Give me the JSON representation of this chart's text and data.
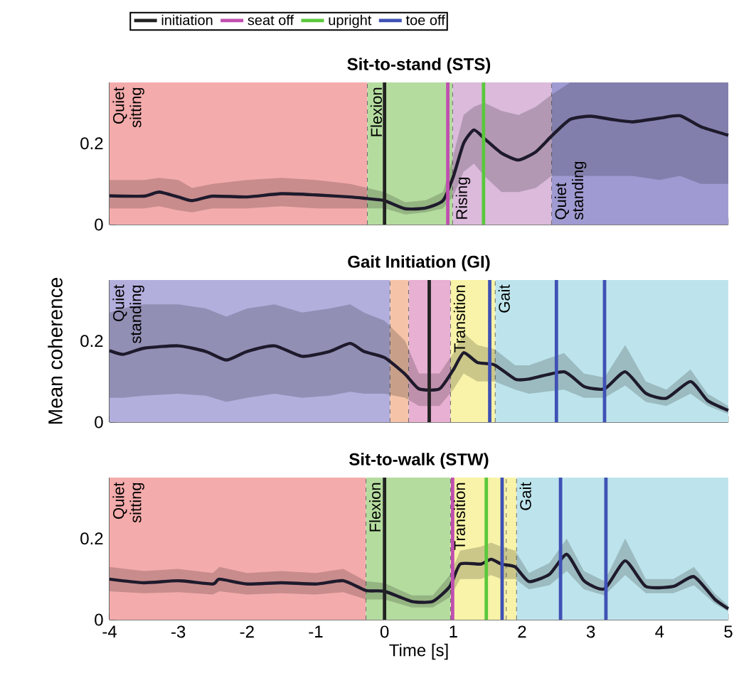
{
  "chart_data": [
    {
      "type": "line",
      "title": "Sit-to-stand (STS)",
      "xlim": [
        -4,
        5
      ],
      "ylim": [
        0,
        0.35
      ],
      "xticks": [
        -4,
        -3,
        -2,
        -1,
        0,
        1,
        2,
        3,
        4,
        5
      ],
      "yticks": [
        0,
        0.2
      ],
      "tick_labels": "y",
      "x": [
        -4,
        -3.5,
        -3.28,
        -3,
        -2.8,
        -2.5,
        -2,
        -1.5,
        -1,
        -0.5,
        -0.25,
        0,
        0.3,
        0.6,
        0.85,
        1.0,
        1.15,
        1.3,
        1.45,
        1.7,
        1.95,
        2.2,
        2.43,
        2.7,
        3,
        3.3,
        3.6,
        4,
        4.3,
        4.6,
        5
      ],
      "series": [
        {
          "color": "#1e1a2c",
          "values": [
            0.071,
            0.07,
            0.08,
            0.068,
            0.059,
            0.07,
            0.068,
            0.076,
            0.073,
            0.068,
            0.064,
            0.059,
            0.039,
            0.041,
            0.059,
            0.118,
            0.2,
            0.233,
            0.212,
            0.176,
            0.159,
            0.179,
            0.218,
            0.259,
            0.267,
            0.259,
            0.253,
            0.262,
            0.268,
            0.241,
            0.22
          ],
          "lower": [
            0.04,
            0.04,
            0.045,
            0.035,
            0.03,
            0.04,
            0.04,
            0.045,
            0.04,
            0.04,
            0.04,
            0.04,
            0.025,
            0.03,
            0.04,
            0.07,
            0.13,
            0.15,
            0.12,
            0.08,
            0.08,
            0.09,
            0.12,
            0.12,
            0.12,
            0.12,
            0.12,
            0.11,
            0.12,
            0.1,
            0.1
          ],
          "upper": [
            0.11,
            0.11,
            0.115,
            0.11,
            0.09,
            0.1,
            0.11,
            0.115,
            0.11,
            0.1,
            0.09,
            0.08,
            0.055,
            0.06,
            0.08,
            0.17,
            0.27,
            0.29,
            0.3,
            0.28,
            0.27,
            0.29,
            0.32,
            0.35,
            0.35,
            0.35,
            0.35,
            0.35,
            0.35,
            0.35,
            0.35
          ]
        }
      ],
      "bands": [
        {
          "axis": "x",
          "from": -4,
          "to": -0.25,
          "label": "Quiet sitting",
          "color": "#f4abab"
        },
        {
          "axis": "x",
          "from": -0.25,
          "to": 0.99,
          "label": "Flexion",
          "color": "#b5dc9f"
        },
        {
          "axis": "x",
          "from": 0.99,
          "to": 2.43,
          "label": "Rising",
          "color": "#dbbadb"
        },
        {
          "axis": "x",
          "from": 2.43,
          "to": 5,
          "label": "Quiet standing",
          "color": "#9f9bd2"
        }
      ],
      "ref_lines": [
        {
          "axis": "x",
          "value": 0,
          "color": "#222222"
        },
        {
          "axis": "x",
          "value": 0.92,
          "color": "#c04fb0"
        },
        {
          "axis": "x",
          "value": 1.44,
          "color": "#5ac83c"
        }
      ]
    },
    {
      "type": "line",
      "title": "Gait Initiation (GI)",
      "ylabel": "Mean coherence",
      "xlim": [
        -4,
        5
      ],
      "ylim": [
        0,
        0.35
      ],
      "xticks": [
        -4,
        -3,
        -2,
        -1,
        0,
        1,
        2,
        3,
        4,
        5
      ],
      "yticks": [
        0,
        0.2
      ],
      "tick_labels": "y",
      "x": [
        -4,
        -3.8,
        -3.5,
        -3,
        -2.6,
        -2.3,
        -2,
        -1.6,
        -1.2,
        -0.8,
        -0.5,
        -0.3,
        0,
        0.3,
        0.5,
        0.8,
        1.0,
        1.15,
        1.35,
        1.6,
        1.9,
        2.1,
        2.61,
        2.9,
        3.2,
        3.5,
        3.8,
        4.1,
        4.45,
        4.7,
        5
      ],
      "series": [
        {
          "color": "#1e1a2c",
          "values": [
            0.176,
            0.167,
            0.182,
            0.188,
            0.174,
            0.153,
            0.174,
            0.188,
            0.162,
            0.174,
            0.194,
            0.174,
            0.159,
            0.118,
            0.082,
            0.082,
            0.129,
            0.171,
            0.147,
            0.141,
            0.106,
            0.106,
            0.124,
            0.088,
            0.082,
            0.124,
            0.071,
            0.059,
            0.1,
            0.053,
            0.029
          ],
          "lower": [
            0.06,
            0.06,
            0.065,
            0.07,
            0.065,
            0.05,
            0.06,
            0.07,
            0.06,
            0.065,
            0.075,
            0.07,
            0.07,
            0.06,
            0.04,
            0.04,
            0.08,
            0.12,
            0.1,
            0.1,
            0.08,
            0.07,
            0.08,
            0.06,
            0.06,
            0.09,
            0.05,
            0.04,
            0.07,
            0.04,
            0.02
          ],
          "upper": [
            0.27,
            0.28,
            0.29,
            0.29,
            0.28,
            0.26,
            0.28,
            0.29,
            0.27,
            0.28,
            0.29,
            0.27,
            0.25,
            0.2,
            0.12,
            0.12,
            0.17,
            0.22,
            0.19,
            0.18,
            0.14,
            0.14,
            0.17,
            0.12,
            0.11,
            0.19,
            0.1,
            0.08,
            0.13,
            0.07,
            0.04
          ]
        }
      ],
      "bands": [
        {
          "axis": "x",
          "from": -4,
          "to": 0.08,
          "label": "Quiet standing",
          "color": "#b3afdd"
        },
        {
          "axis": "x",
          "from": 0.08,
          "to": 0.35,
          "color": "#f5c4a8"
        },
        {
          "axis": "x",
          "from": 0.35,
          "to": 0.96,
          "color": "#e8b0d2"
        },
        {
          "axis": "x",
          "from": 0.96,
          "to": 1.61,
          "label": "Transition",
          "color": "#f8f3a8"
        },
        {
          "axis": "x",
          "from": 1.61,
          "to": 5,
          "label": "Gait",
          "color": "#bde4ec"
        }
      ],
      "ref_lines": [
        {
          "axis": "x",
          "value": 0.65,
          "color": "#222222"
        },
        {
          "axis": "x",
          "value": 1.53,
          "color": "#3f51b5"
        },
        {
          "axis": "x",
          "value": 2.5,
          "color": "#3f51b5"
        },
        {
          "axis": "x",
          "value": 3.2,
          "color": "#3f51b5"
        }
      ]
    },
    {
      "type": "line",
      "title": "Sit-to-walk (STW)",
      "xlabel": "Time [s]",
      "xlim": [
        -4,
        5
      ],
      "ylim": [
        0,
        0.35
      ],
      "xticks": [
        -4,
        -3,
        -2,
        -1,
        0,
        1,
        2,
        3,
        4,
        5
      ],
      "yticks": [
        0,
        0.2
      ],
      "legend": "top",
      "x": [
        -4,
        -3.5,
        -3,
        -2.5,
        -2.4,
        -2,
        -1.5,
        -1,
        -0.6,
        -0.27,
        0,
        0.4,
        0.7,
        0.95,
        1.1,
        1.4,
        1.55,
        1.7,
        1.9,
        2.1,
        2.4,
        2.65,
        2.9,
        3.2,
        3.5,
        3.8,
        4.2,
        4.5,
        4.8,
        5
      ],
      "series": [
        {
          "color": "#1e1a2c",
          "values": [
            0.1,
            0.091,
            0.096,
            0.088,
            0.1,
            0.088,
            0.091,
            0.088,
            0.096,
            0.072,
            0.07,
            0.045,
            0.045,
            0.082,
            0.137,
            0.137,
            0.149,
            0.137,
            0.13,
            0.094,
            0.112,
            0.161,
            0.096,
            0.076,
            0.145,
            0.082,
            0.082,
            0.106,
            0.051,
            0.027
          ],
          "lower": [
            0.07,
            0.065,
            0.068,
            0.062,
            0.07,
            0.062,
            0.065,
            0.062,
            0.068,
            0.05,
            0.05,
            0.03,
            0.03,
            0.055,
            0.1,
            0.1,
            0.11,
            0.1,
            0.1,
            0.075,
            0.085,
            0.12,
            0.075,
            0.06,
            0.11,
            0.065,
            0.065,
            0.085,
            0.04,
            0.02
          ],
          "upper": [
            0.13,
            0.12,
            0.125,
            0.115,
            0.13,
            0.115,
            0.12,
            0.115,
            0.125,
            0.095,
            0.09,
            0.06,
            0.06,
            0.11,
            0.17,
            0.18,
            0.19,
            0.18,
            0.17,
            0.115,
            0.14,
            0.2,
            0.12,
            0.095,
            0.2,
            0.1,
            0.1,
            0.13,
            0.065,
            0.035
          ]
        }
      ],
      "bands": [
        {
          "axis": "x",
          "from": -4,
          "to": -0.27,
          "label": "Quiet sitting",
          "color": "#f4abab"
        },
        {
          "axis": "x",
          "from": -0.27,
          "to": 0.96,
          "label": "Flexion",
          "color": "#b5dc9f"
        },
        {
          "axis": "x",
          "from": 0.96,
          "to": 1.77,
          "label": "Transition",
          "color": "#f8f3a8"
        },
        {
          "axis": "x",
          "from": 1.77,
          "to": 1.92,
          "color": "#f8f3a8"
        },
        {
          "axis": "x",
          "from": 1.92,
          "to": 5,
          "label": "Gait",
          "color": "#bde4ec"
        }
      ],
      "ref_lines": [
        {
          "axis": "x",
          "value": 0,
          "color": "#222222",
          "label": "initiation"
        },
        {
          "axis": "x",
          "value": 0.99,
          "color": "#c04fb0",
          "label": "seat off"
        },
        {
          "axis": "x",
          "value": 1.48,
          "color": "#5ac83c",
          "label": "upright"
        },
        {
          "axis": "x",
          "value": 1.71,
          "color": "#3f51b5",
          "label": "toe off"
        },
        {
          "axis": "x",
          "value": 2.56,
          "color": "#3f51b5"
        },
        {
          "axis": "x",
          "value": 3.22,
          "color": "#3f51b5"
        }
      ]
    }
  ]
}
